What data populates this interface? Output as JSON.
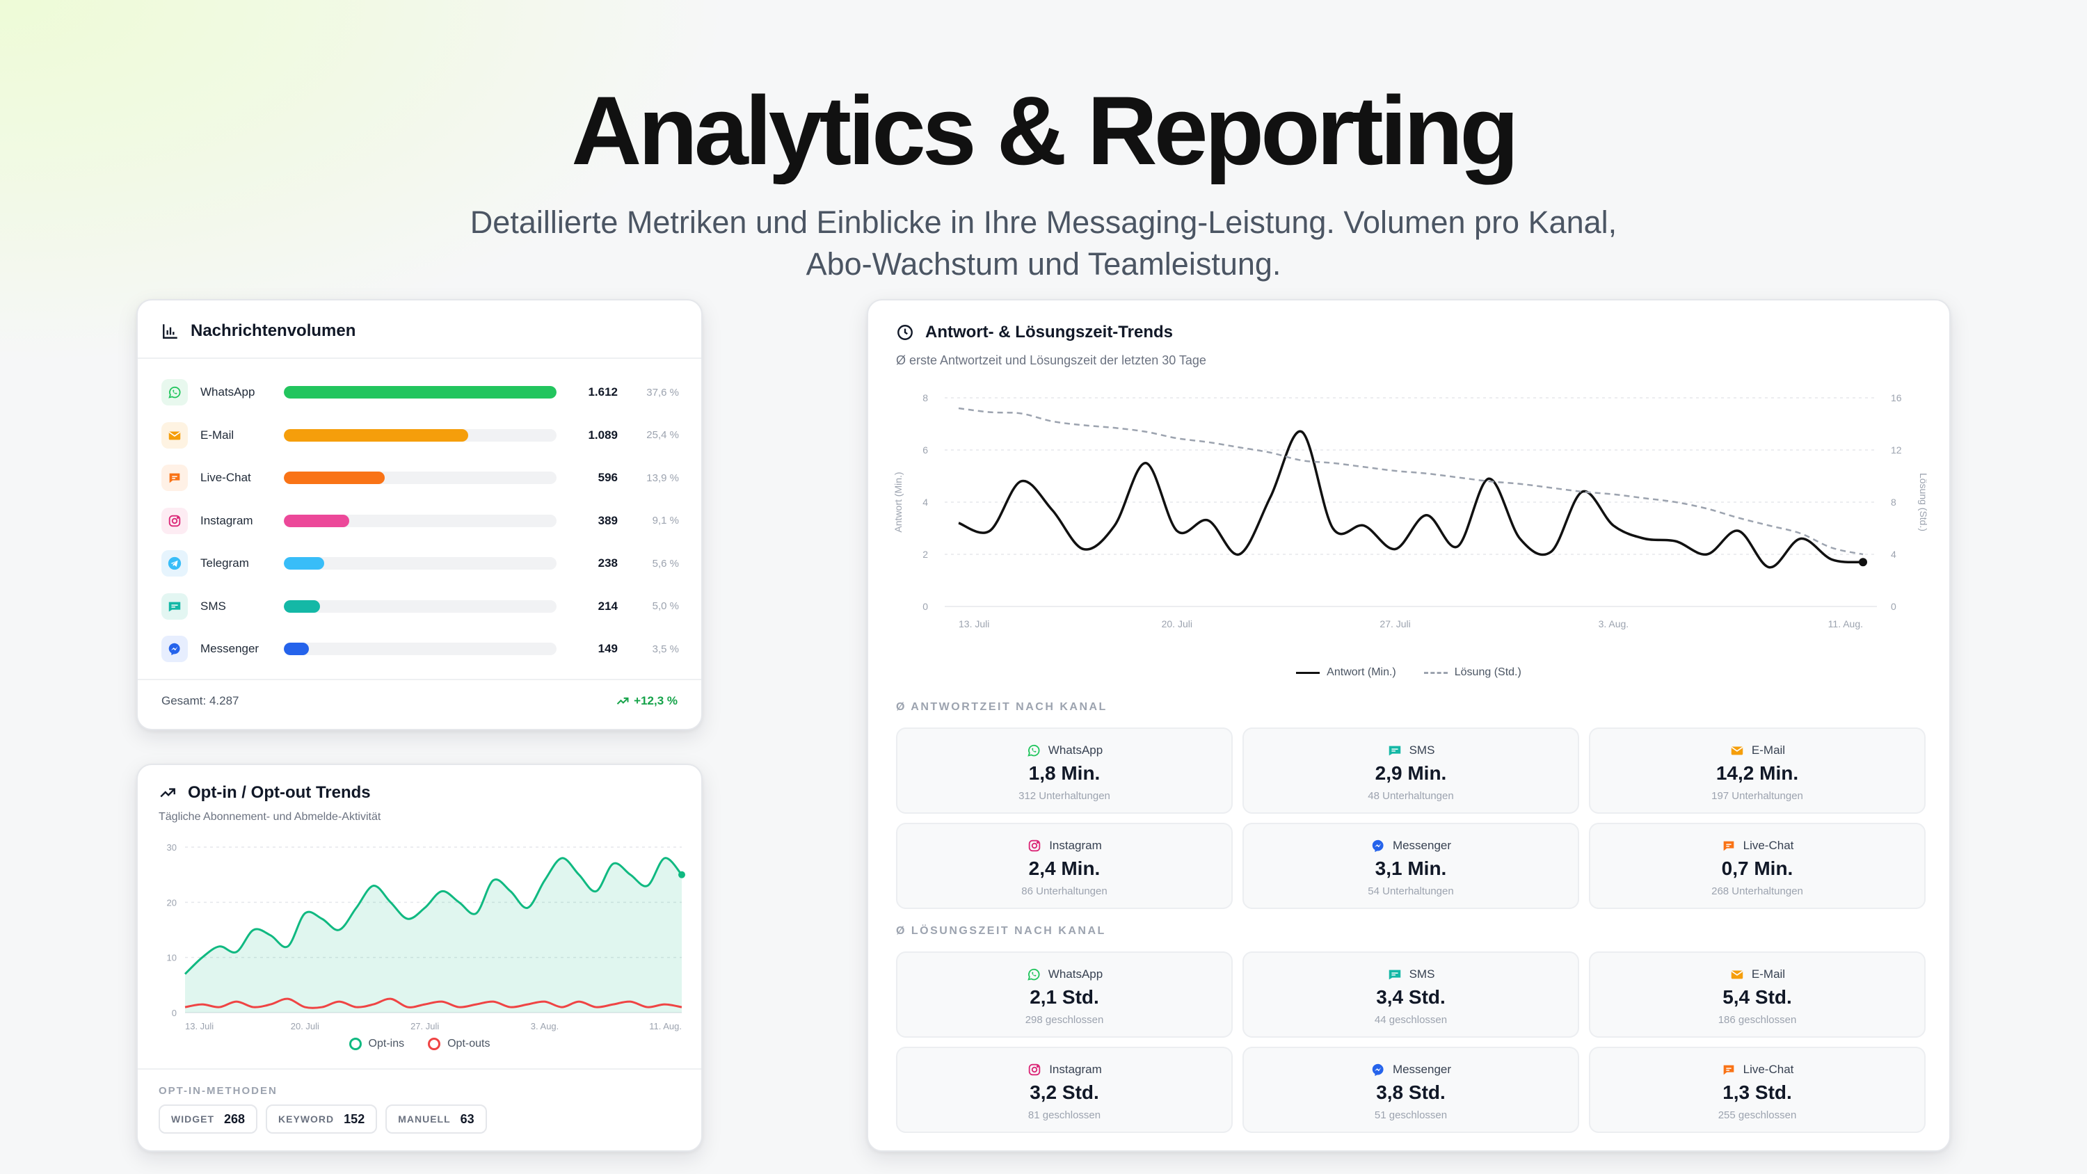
{
  "hero": {
    "title": "Analytics & Reporting",
    "subtitle_line1": "Detaillierte Metriken und Einblicke in Ihre Messaging-Leistung. Volumen pro Kanal,",
    "subtitle_line2": "Abo-Wachstum und Teamleistung."
  },
  "volume": {
    "title": "Nachrichtenvolumen",
    "rows": [
      {
        "channel": "WhatsApp",
        "value": "1.612",
        "pct": "37,6 %",
        "share": 1.0,
        "color": "#22c55e",
        "icon": "whatsapp-icon"
      },
      {
        "channel": "E-Mail",
        "value": "1.089",
        "pct": "25,4 %",
        "share": 0.676,
        "color": "#f59e0b",
        "icon": "mail-icon"
      },
      {
        "channel": "Live-Chat",
        "value": "596",
        "pct": "13,9 %",
        "share": 0.37,
        "color": "#f97316",
        "icon": "chat-icon"
      },
      {
        "channel": "Instagram",
        "value": "389",
        "pct": "9,1 %",
        "share": 0.241,
        "color": "#ec4899",
        "icon": "instagram-icon"
      },
      {
        "channel": "Telegram",
        "value": "238",
        "pct": "5,6 %",
        "share": 0.148,
        "color": "#38bdf8",
        "icon": "telegram-icon"
      },
      {
        "channel": "SMS",
        "value": "214",
        "pct": "5,0 %",
        "share": 0.133,
        "color": "#14b8a6",
        "icon": "sms-icon"
      },
      {
        "channel": "Messenger",
        "value": "149",
        "pct": "3,5 %",
        "share": 0.092,
        "color": "#2563eb",
        "icon": "messenger-icon"
      }
    ],
    "total": "Gesamt: 4.287",
    "growth": "+12,3 %"
  },
  "optin": {
    "title": "Opt-in / Opt-out Trends",
    "subtitle": "Tägliche Abonnement- und Abmelde-Aktivität",
    "methods_label": "OPT-IN-METHODEN",
    "methods": [
      {
        "label": "WIDGET",
        "value": "268"
      },
      {
        "label": "KEYWORD",
        "value": "152"
      },
      {
        "label": "MANUELL",
        "value": "63"
      }
    ]
  },
  "response": {
    "title": "Antwort- & Lösungszeit-Trends",
    "subtitle": "Ø erste Antwortzeit und Lösungszeit der letzten 30 Tage",
    "response_label": "Ø ANTWORTZEIT NACH KANAL",
    "resolution_label": "Ø LÖSUNGSZEIT NACH KANAL",
    "response_stats": [
      {
        "channel": "WhatsApp",
        "value": "1,8 Min.",
        "count": "312 Unterhaltungen",
        "icon": "whatsapp-icon"
      },
      {
        "channel": "SMS",
        "value": "2,9 Min.",
        "count": "48 Unterhaltungen",
        "icon": "sms-icon"
      },
      {
        "channel": "E-Mail",
        "value": "14,2 Min.",
        "count": "197 Unterhaltungen",
        "icon": "mail-icon"
      },
      {
        "channel": "Instagram",
        "value": "2,4 Min.",
        "count": "86 Unterhaltungen",
        "icon": "instagram-icon"
      },
      {
        "channel": "Messenger",
        "value": "3,1 Min.",
        "count": "54 Unterhaltungen",
        "icon": "messenger-icon"
      },
      {
        "channel": "Live-Chat",
        "value": "0,7 Min.",
        "count": "268 Unterhaltungen",
        "icon": "chat-icon"
      }
    ],
    "resolution_stats": [
      {
        "channel": "WhatsApp",
        "value": "2,1 Std.",
        "count": "298 geschlossen",
        "icon": "whatsapp-icon"
      },
      {
        "channel": "SMS",
        "value": "3,4 Std.",
        "count": "44 geschlossen",
        "icon": "sms-icon"
      },
      {
        "channel": "E-Mail",
        "value": "5,4 Std.",
        "count": "186 geschlossen",
        "icon": "mail-icon"
      },
      {
        "channel": "Instagram",
        "value": "3,2 Std.",
        "count": "81 geschlossen",
        "icon": "instagram-icon"
      },
      {
        "channel": "Messenger",
        "value": "3,8 Std.",
        "count": "51 geschlossen",
        "icon": "messenger-icon"
      },
      {
        "channel": "Live-Chat",
        "value": "1,3 Std.",
        "count": "255 geschlossen",
        "icon": "chat-icon"
      }
    ]
  },
  "chart_data": [
    {
      "type": "area",
      "title": "Opt-in / Opt-out Trends",
      "x_ticks": [
        "13. Juli",
        "20. Juli",
        "27. Juli",
        "3. Aug.",
        "11. Aug."
      ],
      "ylim": [
        0,
        30
      ],
      "y_ticks": [
        0,
        10,
        20,
        30
      ],
      "series": [
        {
          "name": "Opt-ins",
          "color": "#10b981",
          "values": [
            7,
            10,
            12,
            11,
            15,
            14,
            12,
            18,
            17,
            15,
            19,
            23,
            20,
            17,
            19,
            22,
            20,
            18,
            24,
            22,
            19,
            24,
            28,
            25,
            22,
            27,
            25,
            23,
            28,
            25
          ]
        },
        {
          "name": "Opt-outs",
          "color": "#ef4444",
          "values": [
            1,
            1.5,
            1,
            2,
            1,
            1.5,
            2.5,
            1,
            1,
            2,
            1,
            1.5,
            2.5,
            1,
            1.5,
            2,
            1,
            1.5,
            2,
            1,
            1.5,
            2,
            1,
            2,
            1,
            1.5,
            2,
            1,
            1.5,
            1
          ]
        }
      ],
      "grid": true,
      "legend": "bottom"
    },
    {
      "type": "line",
      "title": "Antwort- & Lösungszeit-Trends",
      "x_ticks": [
        "13. Juli",
        "20. Juli",
        "27. Juli",
        "3. Aug.",
        "11. Aug."
      ],
      "ylim": [
        0,
        8
      ],
      "y_ticks": [
        0,
        2,
        4,
        6,
        8
      ],
      "y2lim": [
        0,
        16
      ],
      "y2_ticks": [
        0,
        4,
        8,
        12,
        16
      ],
      "ylabel": "Antwort (Min.)",
      "y2label": "Lösung (Std.)",
      "series": [
        {
          "name": "Antwort (Min.)",
          "axis": "left",
          "color": "#111111",
          "dash": false,
          "values": [
            3.2,
            2.9,
            4.8,
            3.7,
            2.2,
            3.1,
            5.5,
            2.9,
            3.3,
            2.0,
            4.2,
            6.7,
            3.0,
            3.1,
            2.2,
            3.5,
            2.3,
            4.9,
            2.6,
            2.1,
            4.4,
            3.1,
            2.6,
            2.5,
            2.0,
            2.9,
            1.5,
            2.6,
            1.8,
            1.7
          ]
        },
        {
          "name": "Lösung (Std.)",
          "axis": "right",
          "color": "#9ca3af",
          "dash": true,
          "values": [
            15.2,
            14.9,
            14.8,
            14.2,
            13.9,
            13.7,
            13.4,
            12.9,
            12.6,
            12.2,
            11.8,
            11.2,
            11.0,
            10.7,
            10.4,
            10.2,
            9.9,
            9.6,
            9.4,
            9.1,
            8.8,
            8.6,
            8.3,
            8.0,
            7.5,
            6.8,
            6.2,
            5.6,
            4.5,
            4.0
          ]
        }
      ],
      "grid": true,
      "legend": "bottom"
    }
  ]
}
